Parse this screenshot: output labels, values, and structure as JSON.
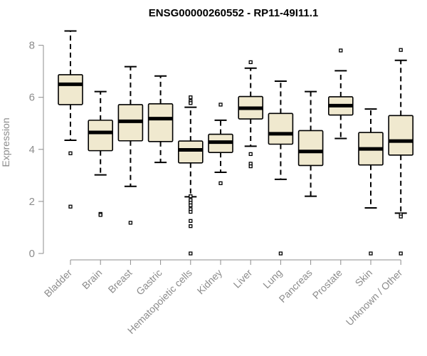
{
  "chart_data": {
    "type": "boxplot",
    "title": "ENSG00000260552 - RP11-49I11.1",
    "xlabel": "",
    "ylabel": "Expression",
    "ylim": [
      0,
      8.6
    ],
    "yticks": [
      0,
      2,
      4,
      6,
      8
    ],
    "box_fill": "#f0e9cf",
    "axis_color": "#8c8c8c",
    "series": [
      {
        "name": "Bladder",
        "q1": 5.72,
        "median": 6.5,
        "q3": 6.87,
        "whisker_low": 4.35,
        "whisker_high": 8.55,
        "outliers": [
          3.85,
          1.8
        ]
      },
      {
        "name": "Brain",
        "q1": 3.95,
        "median": 4.65,
        "q3": 5.12,
        "whisker_low": 3.02,
        "whisker_high": 6.22,
        "outliers": [
          1.52,
          1.48
        ]
      },
      {
        "name": "Breast",
        "q1": 4.33,
        "median": 5.08,
        "q3": 5.72,
        "whisker_low": 2.58,
        "whisker_high": 7.18,
        "outliers": [
          1.18
        ]
      },
      {
        "name": "Gastric",
        "q1": 4.3,
        "median": 5.18,
        "q3": 5.75,
        "whisker_low": 3.5,
        "whisker_high": 6.82,
        "outliers": []
      },
      {
        "name": "Hematopoietic cells",
        "q1": 3.48,
        "median": 3.98,
        "q3": 4.32,
        "whisker_low": 2.18,
        "whisker_high": 5.62,
        "outliers": [
          6.0,
          5.85,
          5.78,
          2.2,
          2.05,
          1.95,
          1.85,
          1.7,
          1.6,
          1.25,
          1.05,
          0.0
        ]
      },
      {
        "name": "Kidney",
        "q1": 3.88,
        "median": 4.28,
        "q3": 4.58,
        "whisker_low": 3.12,
        "whisker_high": 5.12,
        "outliers": [
          5.72,
          2.7
        ]
      },
      {
        "name": "Liver",
        "q1": 5.17,
        "median": 5.58,
        "q3": 6.03,
        "whisker_low": 4.12,
        "whisker_high": 7.12,
        "outliers": [
          7.35,
          3.82,
          3.45,
          3.35
        ]
      },
      {
        "name": "Lung",
        "q1": 4.2,
        "median": 4.6,
        "q3": 5.38,
        "whisker_low": 2.85,
        "whisker_high": 6.62,
        "outliers": [
          0.0
        ]
      },
      {
        "name": "Pancreas",
        "q1": 3.38,
        "median": 3.92,
        "q3": 4.72,
        "whisker_low": 2.2,
        "whisker_high": 6.22,
        "outliers": []
      },
      {
        "name": "Prostate",
        "q1": 5.32,
        "median": 5.68,
        "q3": 6.02,
        "whisker_low": 4.42,
        "whisker_high": 7.02,
        "outliers": [
          7.8
        ]
      },
      {
        "name": "Skin",
        "q1": 3.4,
        "median": 4.02,
        "q3": 4.65,
        "whisker_low": 1.75,
        "whisker_high": 5.55,
        "outliers": [
          0.0
        ]
      },
      {
        "name": "Unknown / Other",
        "q1": 3.78,
        "median": 4.32,
        "q3": 5.3,
        "whisker_low": 1.55,
        "whisker_high": 7.42,
        "outliers": [
          7.82,
          1.5,
          1.42,
          0.0
        ]
      }
    ]
  }
}
